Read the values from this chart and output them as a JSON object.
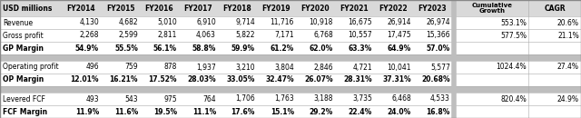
{
  "header_row": [
    "USD millions",
    "FY2014",
    "FY2015",
    "FY2016",
    "FY2017",
    "FY2018",
    "FY2019",
    "FY2020",
    "FY2021",
    "FY2022",
    "FY2023",
    "Cumulative Growth",
    "CAGR"
  ],
  "rows": [
    {
      "label": "Revenue",
      "values": [
        "4,130",
        "4,682",
        "5,010",
        "6,910",
        "9,714",
        "11,716",
        "10,918",
        "16,675",
        "26,914",
        "26,974"
      ],
      "cumulative": "553.1%",
      "cagr": "20.6%",
      "bold": false,
      "shade": "white"
    },
    {
      "label": "Gross profit",
      "values": [
        "2,268",
        "2,599",
        "2,811",
        "4,063",
        "5,822",
        "7,171",
        "6,768",
        "10,557",
        "17,475",
        "15,366"
      ],
      "cumulative": "577.5%",
      "cagr": "21.1%",
      "bold": false,
      "shade": "white"
    },
    {
      "label": "GP Margin",
      "values": [
        "54.9%",
        "55.5%",
        "56.1%",
        "58.8%",
        "59.9%",
        "61.2%",
        "62.0%",
        "63.3%",
        "64.9%",
        "57.0%"
      ],
      "cumulative": "",
      "cagr": "",
      "bold": true,
      "shade": "white"
    },
    {
      "label": "",
      "values": [
        "",
        "",
        "",
        "",
        "",
        "",
        "",
        "",
        "",
        ""
      ],
      "cumulative": "",
      "cagr": "",
      "bold": false,
      "shade": "gray"
    },
    {
      "label": "Operating profit",
      "values": [
        "496",
        "759",
        "878",
        "1,937",
        "3,210",
        "3,804",
        "2,846",
        "4,721",
        "10,041",
        "5,577"
      ],
      "cumulative": "1024.4%",
      "cagr": "27.4%",
      "bold": false,
      "shade": "white"
    },
    {
      "label": "OP Margin",
      "values": [
        "12.01%",
        "16.21%",
        "17.52%",
        "28.03%",
        "33.05%",
        "32.47%",
        "26.07%",
        "28.31%",
        "37.31%",
        "20.68%"
      ],
      "cumulative": "",
      "cagr": "",
      "bold": true,
      "shade": "white"
    },
    {
      "label": "",
      "values": [
        "",
        "",
        "",
        "",
        "",
        "",
        "",
        "",
        "",
        ""
      ],
      "cumulative": "",
      "cagr": "",
      "bold": false,
      "shade": "gray"
    },
    {
      "label": "Levered FCF",
      "values": [
        "493",
        "543",
        "975",
        "764",
        "1,706",
        "1,763",
        "3,188",
        "3,735",
        "6,468",
        "4,533"
      ],
      "cumulative": "820.4%",
      "cagr": "24.9%",
      "bold": false,
      "shade": "white"
    },
    {
      "label": "FCF Margin",
      "values": [
        "11.9%",
        "11.6%",
        "19.5%",
        "11.1%",
        "17.6%",
        "15.1%",
        "29.2%",
        "22.4%",
        "24.0%",
        "16.8%"
      ],
      "cumulative": "",
      "cagr": "",
      "bold": true,
      "shade": "white"
    }
  ],
  "header_bg": "#D9D9D9",
  "gray_row_bg": "#BEBEBE",
  "white_row_bg": "#FFFFFF",
  "fig_w": 6.4,
  "fig_h": 1.3,
  "dpi": 100
}
